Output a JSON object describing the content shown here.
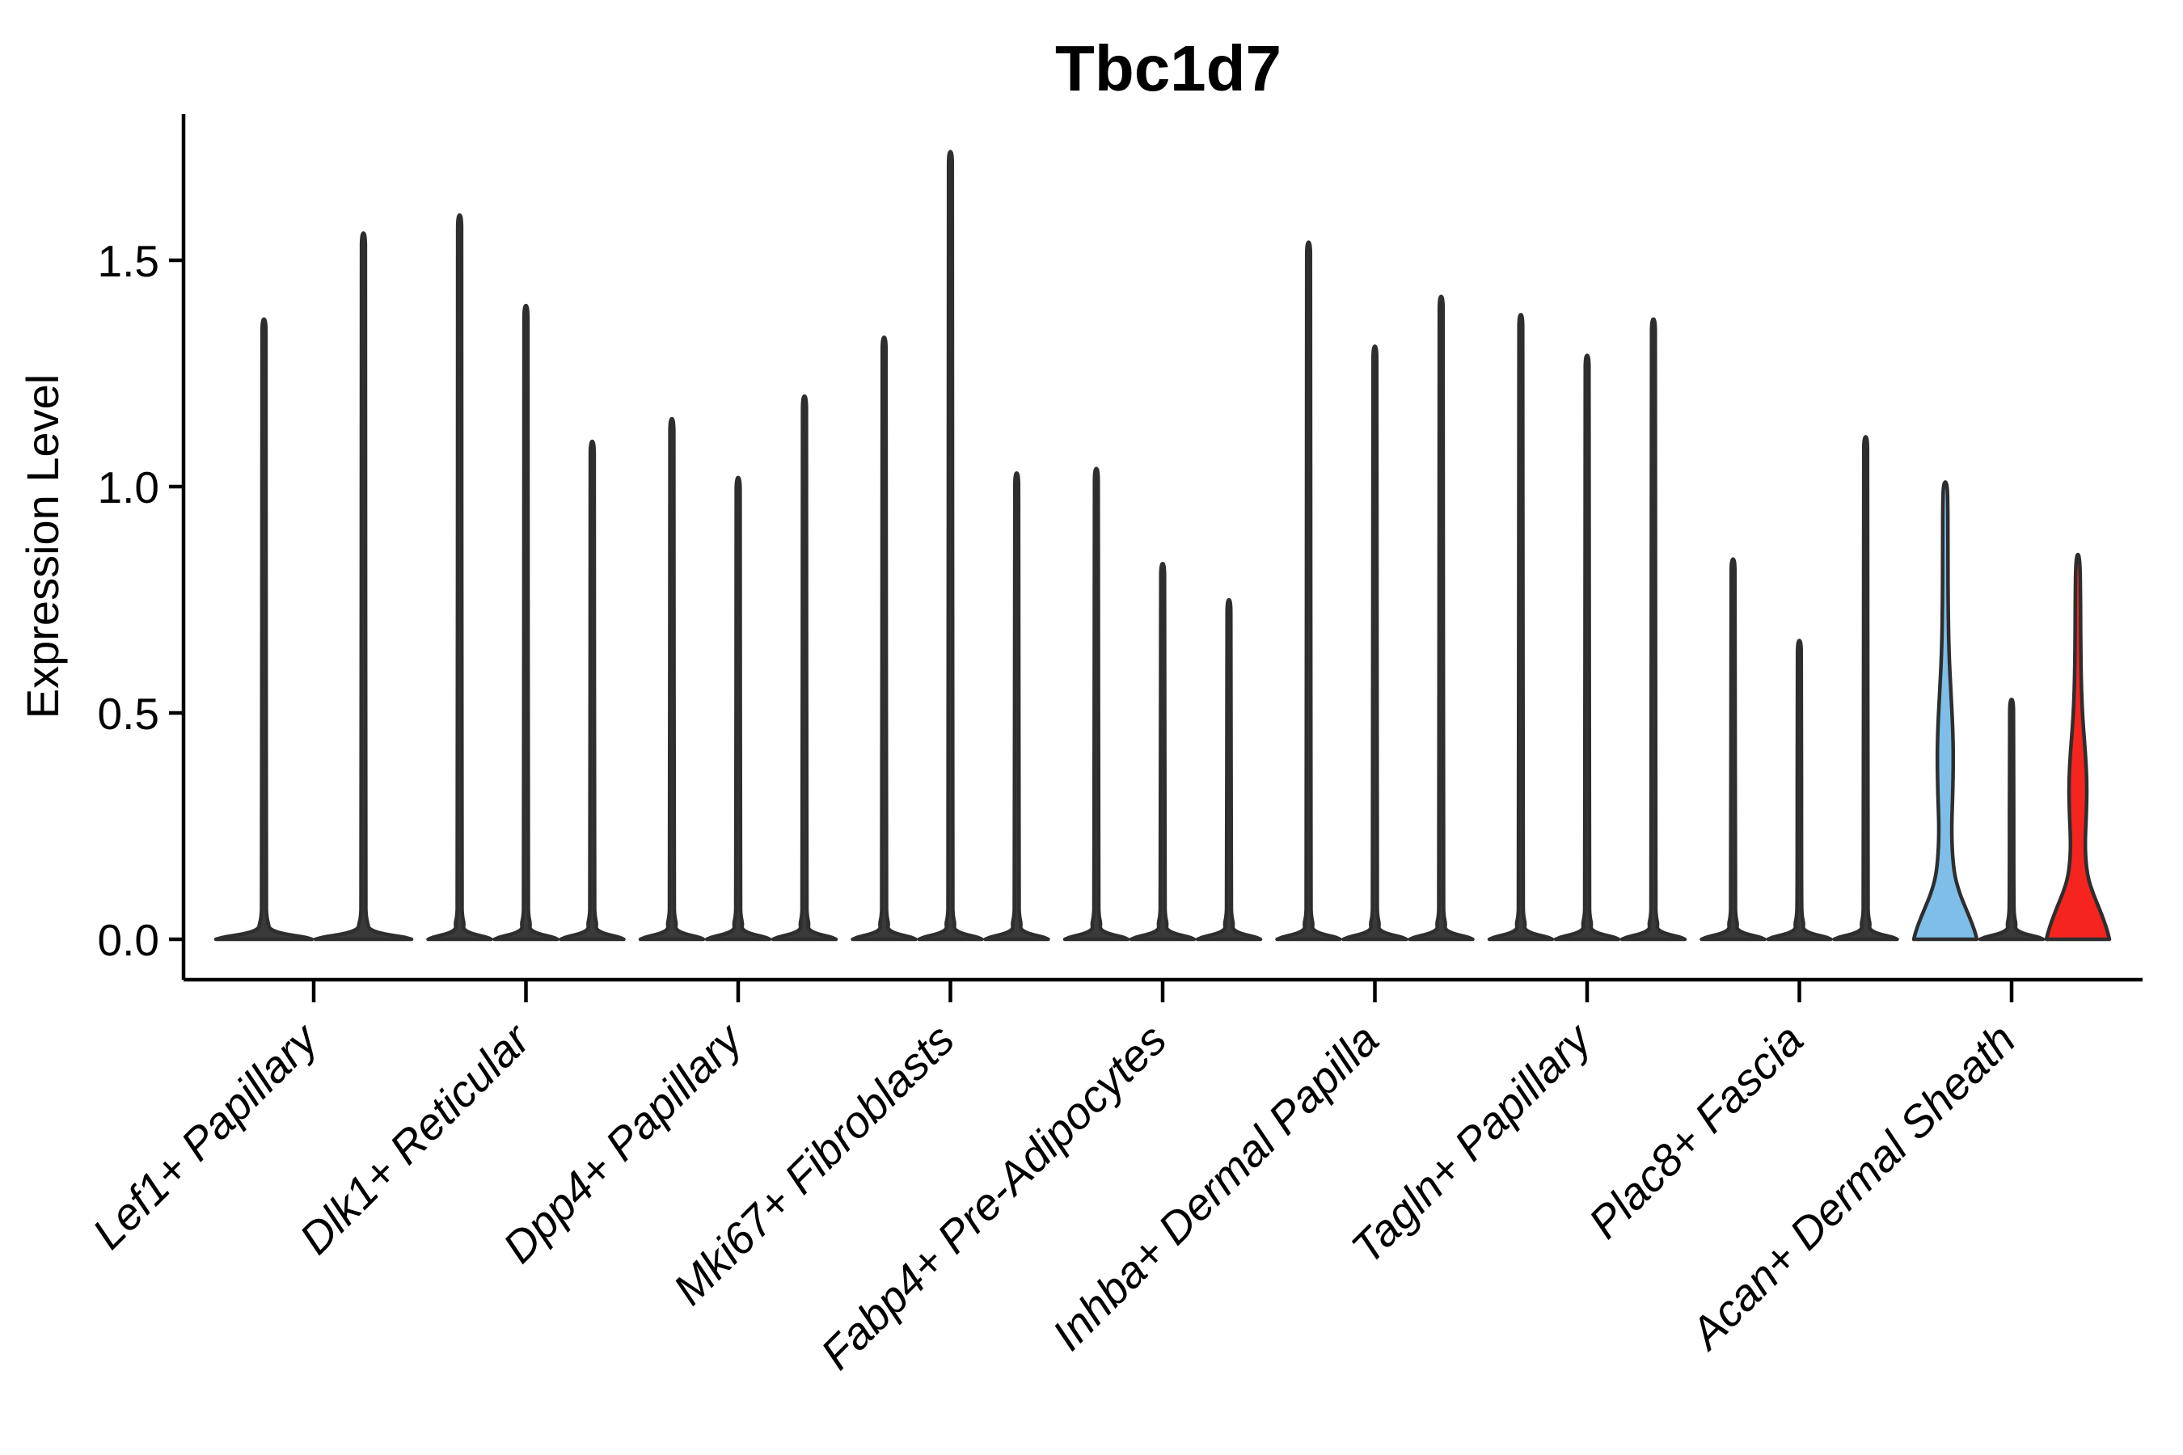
{
  "figure": {
    "title": "Tbc1d7",
    "ylabel": "Expression Level"
  },
  "chart_data": {
    "type": "violin",
    "title": "Tbc1d7",
    "xlabel": "",
    "ylabel": "Expression Level",
    "ylim": [
      -0.09,
      1.82
    ],
    "yticks": [
      0.0,
      0.5,
      1.0,
      1.5
    ],
    "grid": false,
    "legend": null,
    "outline_color": "#2E2E2E",
    "default_fill": "#3A3A3A",
    "accent_colors": {
      "blue": "#7EBEE8",
      "red": "#F5241E"
    },
    "categories": [
      "Lef1+ Papillary",
      "Dlk1+ Reticular",
      "Dpp4+ Papillary",
      "Mki67+ Fibroblasts",
      "Fabp4+ Pre-Adipocytes",
      "Inhba+ Dermal Papilla",
      "Tagln+ Papillary",
      "Plac8+ Fascia",
      "Acan+ Dermal Sheath"
    ],
    "groups": [
      {
        "category": "Lef1+ Papillary",
        "violins": [
          {
            "max": 1.37,
            "shape": "spike",
            "fill": "#3A3A3A"
          },
          {
            "max": 1.56,
            "shape": "spike",
            "fill": "#3A3A3A"
          }
        ]
      },
      {
        "category": "Dlk1+ Reticular",
        "violins": [
          {
            "max": 1.6,
            "shape": "spike",
            "fill": "#3A3A3A"
          },
          {
            "max": 1.4,
            "shape": "spike",
            "fill": "#3A3A3A"
          },
          {
            "max": 1.1,
            "shape": "spike",
            "fill": "#3A3A3A"
          }
        ]
      },
      {
        "category": "Dpp4+ Papillary",
        "violins": [
          {
            "max": 1.15,
            "shape": "spike",
            "fill": "#3A3A3A"
          },
          {
            "max": 1.02,
            "shape": "spike",
            "fill": "#3A3A3A"
          },
          {
            "max": 1.2,
            "shape": "spike",
            "fill": "#3A3A3A"
          }
        ]
      },
      {
        "category": "Mki67+ Fibroblasts",
        "violins": [
          {
            "max": 1.33,
            "shape": "spike",
            "fill": "#3A3A3A"
          },
          {
            "max": 1.74,
            "shape": "spike",
            "fill": "#3A3A3A"
          },
          {
            "max": 1.03,
            "shape": "spike",
            "fill": "#3A3A3A"
          }
        ]
      },
      {
        "category": "Fabp4+ Pre-Adipocytes",
        "violins": [
          {
            "max": 1.04,
            "shape": "spike",
            "fill": "#3A3A3A"
          },
          {
            "max": 0.83,
            "shape": "spike",
            "fill": "#3A3A3A"
          },
          {
            "max": 0.75,
            "shape": "spike",
            "fill": "#3A3A3A"
          }
        ]
      },
      {
        "category": "Inhba+ Dermal Papilla",
        "violins": [
          {
            "max": 1.54,
            "shape": "spike",
            "fill": "#3A3A3A"
          },
          {
            "max": 1.31,
            "shape": "spike",
            "fill": "#3A3A3A"
          },
          {
            "max": 1.42,
            "shape": "spike",
            "fill": "#3A3A3A"
          }
        ]
      },
      {
        "category": "Tagln+ Papillary",
        "violins": [
          {
            "max": 1.38,
            "shape": "spike",
            "fill": "#3A3A3A"
          },
          {
            "max": 1.29,
            "shape": "spike",
            "fill": "#3A3A3A"
          },
          {
            "max": 1.37,
            "shape": "spike",
            "fill": "#3A3A3A"
          }
        ]
      },
      {
        "category": "Plac8+ Fascia",
        "violins": [
          {
            "max": 0.84,
            "shape": "spike",
            "fill": "#3A3A3A"
          },
          {
            "max": 0.66,
            "shape": "spike",
            "fill": "#3A3A3A"
          },
          {
            "max": 1.11,
            "shape": "spike",
            "fill": "#3A3A3A"
          }
        ]
      },
      {
        "category": "Acan+ Dermal Sheath",
        "violins": [
          {
            "max": 1.01,
            "shape": "bulge",
            "fill": "#7EBEE8",
            "profile": [
              [
                0,
                39
              ],
              [
                0.015,
                37
              ],
              [
                0.04,
                32
              ],
              [
                0.07,
                25
              ],
              [
                0.1,
                18
              ],
              [
                0.14,
                11.5
              ],
              [
                0.19,
                8.6
              ],
              [
                0.25,
                7.8
              ],
              [
                0.32,
                9.2
              ],
              [
                0.4,
                10.0
              ],
              [
                0.47,
                9.2
              ],
              [
                0.55,
                6.8
              ],
              [
                0.63,
                4.6
              ],
              [
                0.72,
                3.6
              ],
              [
                0.85,
                3.2
              ],
              [
                0.95,
                3.2
              ],
              [
                1.01,
                2.4
              ]
            ]
          },
          {
            "max": 0.53,
            "shape": "spike",
            "fill": "#3A3A3A"
          },
          {
            "max": 0.85,
            "shape": "bulge",
            "fill": "#F5241E",
            "profile": [
              [
                0,
                39
              ],
              [
                0.015,
                37
              ],
              [
                0.04,
                32.5
              ],
              [
                0.07,
                26
              ],
              [
                0.1,
                19
              ],
              [
                0.135,
                12.5
              ],
              [
                0.175,
                9.6
              ],
              [
                0.22,
                9.0
              ],
              [
                0.28,
                10.6
              ],
              [
                0.345,
                11.2
              ],
              [
                0.41,
                9.4
              ],
              [
                0.48,
                6.2
              ],
              [
                0.55,
                4.4
              ],
              [
                0.63,
                3.6
              ],
              [
                0.75,
                3.3
              ],
              [
                0.85,
                2.4
              ]
            ]
          }
        ]
      }
    ]
  }
}
